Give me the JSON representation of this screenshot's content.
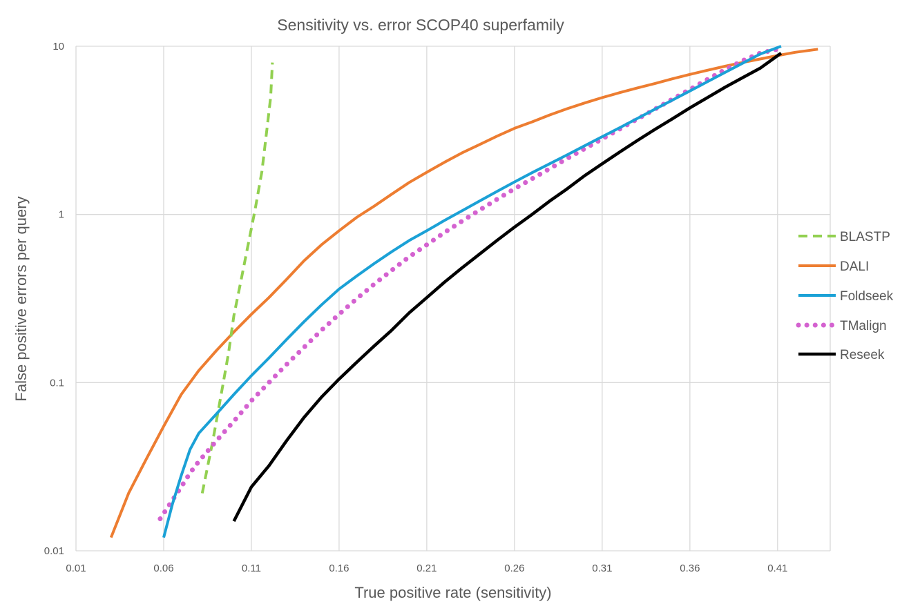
{
  "chart_data": {
    "type": "line",
    "title": "Sensitivity vs. error SCOP40 superfamily",
    "xlabel": "True positive rate (sensitivity)",
    "ylabel": "False positive errors per query",
    "xlim": [
      0.01,
      0.44
    ],
    "ylim": [
      0.01,
      10
    ],
    "yscale": "log",
    "x_ticks": [
      "0.01",
      "0.06",
      "0.11",
      "0.16",
      "0.21",
      "0.26",
      "0.31",
      "0.36",
      "0.41"
    ],
    "x_tick_values": [
      0.01,
      0.06,
      0.11,
      0.16,
      0.21,
      0.26,
      0.31,
      0.36,
      0.41
    ],
    "y_ticks": [
      "0.01",
      "0.1",
      "1",
      "10"
    ],
    "y_tick_values": [
      0.01,
      0.1,
      1,
      10
    ],
    "grid": true,
    "legend_position": "right",
    "series": [
      {
        "name": "BLASTP",
        "color": "#92d050",
        "style": "dashed",
        "points": [
          [
            0.082,
            0.022
          ],
          [
            0.088,
            0.045
          ],
          [
            0.094,
            0.1
          ],
          [
            0.097,
            0.15
          ],
          [
            0.1,
            0.25
          ],
          [
            0.104,
            0.4
          ],
          [
            0.108,
            0.65
          ],
          [
            0.112,
            1.05
          ],
          [
            0.116,
            1.8
          ],
          [
            0.119,
            3.3
          ],
          [
            0.121,
            5.0
          ],
          [
            0.122,
            8.0
          ]
        ]
      },
      {
        "name": "DALI",
        "color": "#ed7d31",
        "style": "solid",
        "points": [
          [
            0.03,
            0.012
          ],
          [
            0.04,
            0.022
          ],
          [
            0.05,
            0.035
          ],
          [
            0.06,
            0.055
          ],
          [
            0.07,
            0.085
          ],
          [
            0.08,
            0.118
          ],
          [
            0.09,
            0.155
          ],
          [
            0.1,
            0.2
          ],
          [
            0.11,
            0.255
          ],
          [
            0.12,
            0.32
          ],
          [
            0.13,
            0.41
          ],
          [
            0.14,
            0.53
          ],
          [
            0.15,
            0.66
          ],
          [
            0.16,
            0.8
          ],
          [
            0.17,
            0.96
          ],
          [
            0.18,
            1.12
          ],
          [
            0.19,
            1.32
          ],
          [
            0.2,
            1.55
          ],
          [
            0.21,
            1.78
          ],
          [
            0.22,
            2.04
          ],
          [
            0.23,
            2.32
          ],
          [
            0.24,
            2.6
          ],
          [
            0.25,
            2.92
          ],
          [
            0.26,
            3.25
          ],
          [
            0.27,
            3.55
          ],
          [
            0.28,
            3.9
          ],
          [
            0.29,
            4.25
          ],
          [
            0.3,
            4.6
          ],
          [
            0.31,
            4.95
          ],
          [
            0.32,
            5.3
          ],
          [
            0.33,
            5.65
          ],
          [
            0.34,
            6.0
          ],
          [
            0.35,
            6.4
          ],
          [
            0.36,
            6.8
          ],
          [
            0.37,
            7.2
          ],
          [
            0.38,
            7.6
          ],
          [
            0.39,
            8.0
          ],
          [
            0.4,
            8.4
          ],
          [
            0.41,
            8.8
          ],
          [
            0.42,
            9.2
          ],
          [
            0.433,
            9.6
          ]
        ]
      },
      {
        "name": "Foldseek",
        "color": "#1ba1d6",
        "style": "solid",
        "points": [
          [
            0.06,
            0.012
          ],
          [
            0.065,
            0.019
          ],
          [
            0.07,
            0.028
          ],
          [
            0.075,
            0.04
          ],
          [
            0.08,
            0.05
          ],
          [
            0.09,
            0.065
          ],
          [
            0.1,
            0.085
          ],
          [
            0.11,
            0.11
          ],
          [
            0.12,
            0.14
          ],
          [
            0.13,
            0.18
          ],
          [
            0.14,
            0.23
          ],
          [
            0.15,
            0.29
          ],
          [
            0.16,
            0.36
          ],
          [
            0.17,
            0.43
          ],
          [
            0.18,
            0.51
          ],
          [
            0.19,
            0.6
          ],
          [
            0.2,
            0.7
          ],
          [
            0.21,
            0.8
          ],
          [
            0.22,
            0.92
          ],
          [
            0.23,
            1.05
          ],
          [
            0.24,
            1.2
          ],
          [
            0.25,
            1.37
          ],
          [
            0.26,
            1.56
          ],
          [
            0.27,
            1.77
          ],
          [
            0.28,
            2.0
          ],
          [
            0.29,
            2.26
          ],
          [
            0.3,
            2.56
          ],
          [
            0.31,
            2.9
          ],
          [
            0.32,
            3.28
          ],
          [
            0.33,
            3.72
          ],
          [
            0.34,
            4.22
          ],
          [
            0.35,
            4.78
          ],
          [
            0.36,
            5.42
          ],
          [
            0.37,
            6.15
          ],
          [
            0.38,
            6.98
          ],
          [
            0.39,
            7.92
          ],
          [
            0.4,
            8.98
          ],
          [
            0.412,
            10.0
          ]
        ]
      },
      {
        "name": "TMalign",
        "color": "#d462d0",
        "style": "dotted",
        "points": [
          [
            0.058,
            0.0155
          ],
          [
            0.065,
            0.02
          ],
          [
            0.07,
            0.024
          ],
          [
            0.075,
            0.029
          ],
          [
            0.08,
            0.034
          ],
          [
            0.09,
            0.045
          ],
          [
            0.1,
            0.059
          ],
          [
            0.11,
            0.078
          ],
          [
            0.12,
            0.1
          ],
          [
            0.13,
            0.128
          ],
          [
            0.14,
            0.162
          ],
          [
            0.15,
            0.205
          ],
          [
            0.16,
            0.255
          ],
          [
            0.17,
            0.315
          ],
          [
            0.18,
            0.385
          ],
          [
            0.19,
            0.465
          ],
          [
            0.2,
            0.56
          ],
          [
            0.21,
            0.66
          ],
          [
            0.22,
            0.78
          ],
          [
            0.23,
            0.91
          ],
          [
            0.24,
            1.06
          ],
          [
            0.25,
            1.23
          ],
          [
            0.26,
            1.42
          ],
          [
            0.27,
            1.63
          ],
          [
            0.28,
            1.87
          ],
          [
            0.29,
            2.15
          ],
          [
            0.3,
            2.46
          ],
          [
            0.31,
            2.81
          ],
          [
            0.32,
            3.22
          ],
          [
            0.33,
            3.69
          ],
          [
            0.34,
            4.22
          ],
          [
            0.35,
            4.84
          ],
          [
            0.36,
            5.54
          ],
          [
            0.37,
            6.35
          ],
          [
            0.38,
            7.25
          ],
          [
            0.39,
            8.2
          ],
          [
            0.4,
            9.1
          ],
          [
            0.41,
            9.6
          ]
        ]
      },
      {
        "name": "Reseek",
        "color": "#000000",
        "style": "solid",
        "points": [
          [
            0.1,
            0.015
          ],
          [
            0.11,
            0.024
          ],
          [
            0.12,
            0.032
          ],
          [
            0.13,
            0.045
          ],
          [
            0.14,
            0.062
          ],
          [
            0.15,
            0.082
          ],
          [
            0.16,
            0.105
          ],
          [
            0.17,
            0.132
          ],
          [
            0.18,
            0.165
          ],
          [
            0.19,
            0.205
          ],
          [
            0.2,
            0.26
          ],
          [
            0.21,
            0.32
          ],
          [
            0.22,
            0.395
          ],
          [
            0.23,
            0.48
          ],
          [
            0.24,
            0.58
          ],
          [
            0.25,
            0.7
          ],
          [
            0.26,
            0.84
          ],
          [
            0.27,
            1.0
          ],
          [
            0.28,
            1.2
          ],
          [
            0.29,
            1.42
          ],
          [
            0.3,
            1.7
          ],
          [
            0.31,
            2.0
          ],
          [
            0.32,
            2.35
          ],
          [
            0.33,
            2.75
          ],
          [
            0.34,
            3.2
          ],
          [
            0.35,
            3.7
          ],
          [
            0.36,
            4.3
          ],
          [
            0.37,
            4.95
          ],
          [
            0.38,
            5.7
          ],
          [
            0.39,
            6.5
          ],
          [
            0.4,
            7.4
          ],
          [
            0.412,
            9.1
          ]
        ]
      }
    ]
  }
}
